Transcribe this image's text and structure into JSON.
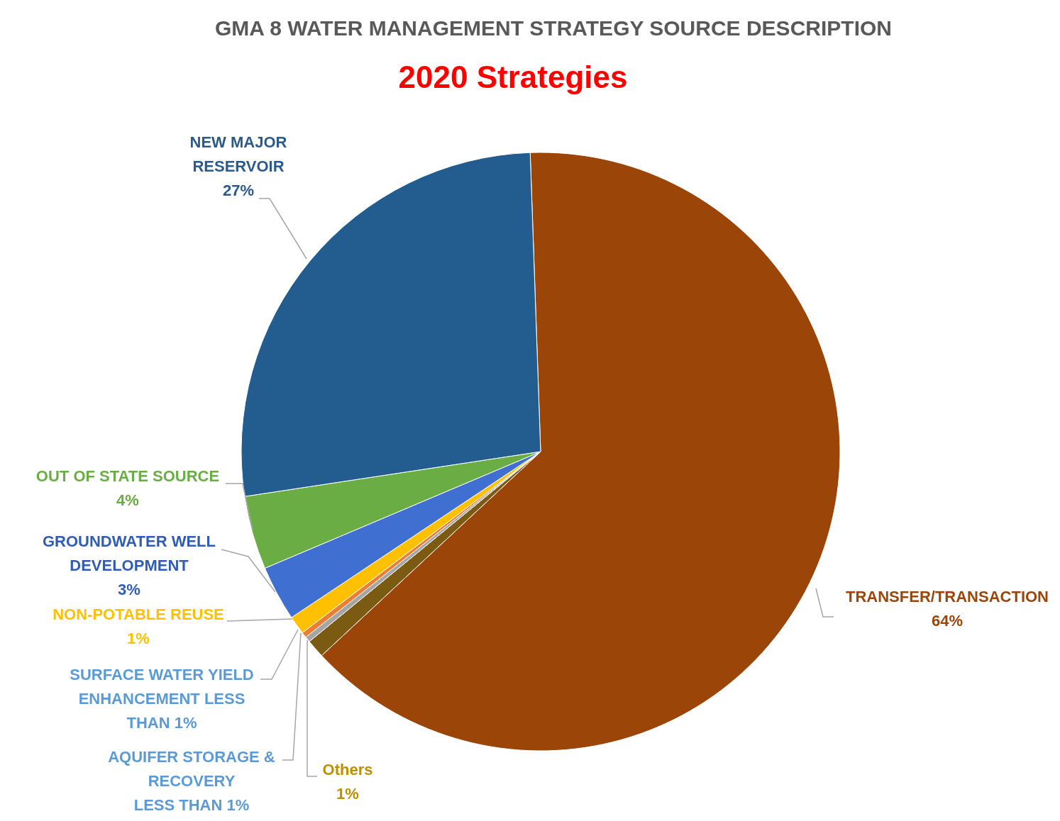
{
  "chart_data": {
    "type": "pie",
    "title": "GMA 8 WATER MANAGEMENT STRATEGY SOURCE DESCRIPTION",
    "subtitle": "2020 Strategies",
    "categories": [
      "TRANSFER/TRANSACTION",
      "Others",
      "AQUIFER STORAGE & RECOVERY LESS THAN 1%",
      "SURFACE WATER YIELD ENHANCEMENT LESS THAN 1%",
      "NON-POTABLE REUSE",
      "GROUNDWATER WELL DEVELOPMENT",
      "OUT OF STATE SOURCE",
      "NEW MAJOR RESERVOIR"
    ],
    "values": [
      64,
      1,
      0.3,
      0.3,
      1,
      3,
      4,
      27
    ],
    "value_labels": [
      "64%",
      "1%",
      null,
      null,
      "1%",
      "3%",
      "4%",
      "27%"
    ],
    "colors": [
      "#9c4509",
      "#7b5b12",
      "#a5a5a5",
      "#ed7d31",
      "#ffc000",
      "#3f6fd1",
      "#6aad45",
      "#235d8f"
    ]
  }
}
